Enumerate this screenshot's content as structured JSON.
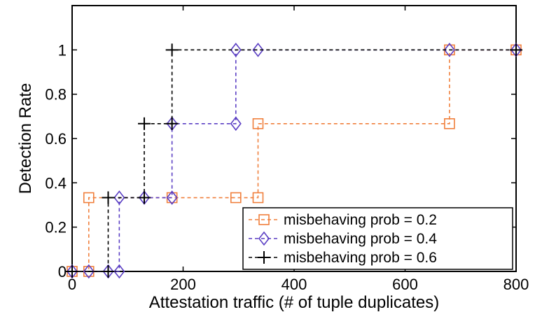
{
  "chart_data": {
    "type": "line",
    "line_shape": "step",
    "xlabel": "Attestation traffic (# of tuple duplicates)",
    "ylabel": "Detection Rate",
    "xlim": [
      0,
      800
    ],
    "ylim": [
      0,
      1.2
    ],
    "x_ticks": [
      0,
      200,
      400,
      600,
      800
    ],
    "y_ticks": [
      0,
      0.2,
      0.4,
      0.6,
      0.8,
      1
    ],
    "x_tick_labels": [
      "0",
      "200",
      "400",
      "600",
      "800"
    ],
    "y_tick_labels": [
      "0",
      "0.2",
      "0.4",
      "0.6",
      "0.8",
      "1"
    ],
    "grid": false,
    "legend_position": "bottom-right",
    "series": [
      {
        "name": "misbehaving prob = 0.2",
        "color": "#f07f3c",
        "marker": "square",
        "points": [
          [
            0,
            0
          ],
          [
            30,
            0
          ],
          [
            30,
            0.333
          ],
          [
            180,
            0.333
          ],
          [
            295,
            0.333
          ],
          [
            335,
            0.333
          ],
          [
            335,
            0.667
          ],
          [
            680,
            0.667
          ],
          [
            680,
            1
          ],
          [
            800,
            1
          ]
        ]
      },
      {
        "name": "misbehaving prob = 0.4",
        "color": "#5b3fc4",
        "marker": "diamond",
        "points": [
          [
            0,
            0
          ],
          [
            30,
            0
          ],
          [
            65,
            0
          ],
          [
            85,
            0
          ],
          [
            85,
            0.333
          ],
          [
            130,
            0.333
          ],
          [
            180,
            0.333
          ],
          [
            180,
            0.667
          ],
          [
            295,
            0.667
          ],
          [
            295,
            1
          ],
          [
            335,
            1
          ],
          [
            680,
            1
          ],
          [
            800,
            1
          ]
        ]
      },
      {
        "name": "misbehaving prob = 0.6",
        "color": "#000000",
        "marker": "plus",
        "points": [
          [
            0,
            0
          ],
          [
            65,
            0
          ],
          [
            65,
            0.333
          ],
          [
            130,
            0.333
          ],
          [
            130,
            0.667
          ],
          [
            180,
            0.667
          ],
          [
            180,
            1
          ],
          [
            800,
            1
          ]
        ]
      }
    ]
  }
}
